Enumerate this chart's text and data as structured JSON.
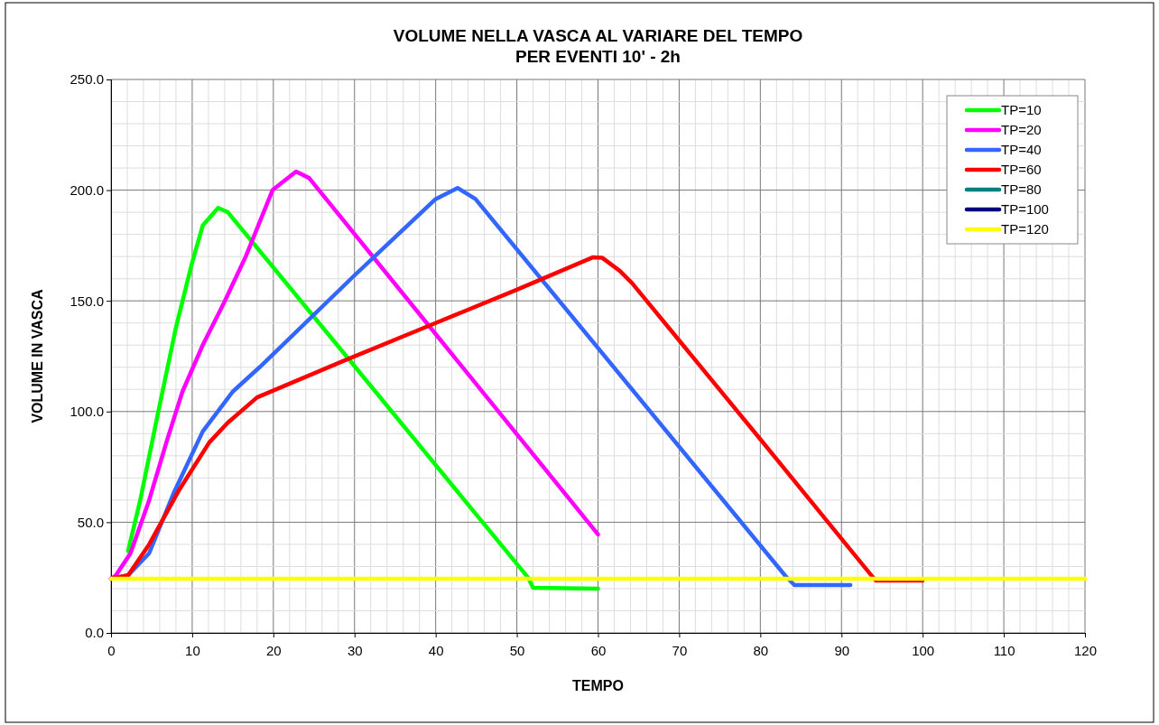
{
  "chart_data": {
    "type": "line",
    "title": "VOLUME NELLA VASCA AL VARIARE DEL TEMPO",
    "subtitle": "PER EVENTI 10' - 2h",
    "xlabel": "TEMPO",
    "ylabel": "VOLUME IN VASCA",
    "xlim": [
      0,
      120
    ],
    "xticks": [
      0,
      10,
      20,
      30,
      40,
      50,
      60,
      70,
      80,
      90,
      100,
      110,
      120
    ],
    "ylim": [
      0,
      250
    ],
    "yticks": [
      {
        "value": 0,
        "label": "0.0"
      },
      {
        "value": 50,
        "label": "50.0"
      },
      {
        "value": 100,
        "label": "100.0"
      },
      {
        "value": 150,
        "label": "150.0"
      },
      {
        "value": 200,
        "label": "200.0"
      },
      {
        "value": 250,
        "label": "250.0"
      }
    ],
    "grid": true,
    "legend": "top right",
    "marker": "none",
    "line_style": "solid",
    "series": [
      {
        "name": "TP=10",
        "color": "#00ff00",
        "x": [
          2.1,
          3.6,
          5.8,
          8,
          9.9,
          11.3,
          13.2,
          14.4,
          30,
          51.4,
          52,
          60
        ],
        "values": [
          37,
          60,
          99.5,
          138,
          166,
          184,
          192,
          190,
          120.5,
          24.9,
          20.4,
          20
        ]
      },
      {
        "name": "TP=20",
        "color": "#ff00ff",
        "x": [
          0,
          0.6,
          2.4,
          4.7,
          6.9,
          8.8,
          11.3,
          13.9,
          16.6,
          19.9,
          22.8,
          24.4,
          40,
          60
        ],
        "values": [
          24.5,
          26,
          36,
          60,
          87,
          109,
          130,
          149,
          170,
          200,
          208.4,
          205.5,
          135,
          44.5
        ]
      },
      {
        "name": "TP=40",
        "color": "#3366ff",
        "x": [
          0,
          2.1,
          4.7,
          7.7,
          11.3,
          15,
          18.3,
          30,
          40,
          42.7,
          44.9,
          83.1,
          84.2,
          91.1
        ],
        "values": [
          24.5,
          26,
          36,
          63,
          91,
          109,
          120,
          161.5,
          196,
          201,
          196,
          25.7,
          21.6,
          21.6
        ]
      },
      {
        "name": "TP=60",
        "color": "#ff0000",
        "x": [
          0,
          2.1,
          4.7,
          8.3,
          12.1,
          14.4,
          18,
          28.6,
          40,
          50,
          59.4,
          60.5,
          62.7,
          64.2,
          80,
          93.3,
          94.2,
          100
        ],
        "values": [
          24.5,
          26,
          40,
          64,
          86,
          95,
          106.4,
          122.8,
          140,
          155,
          169.7,
          169.5,
          163.5,
          158,
          87.5,
          27.7,
          23.7,
          23.7
        ]
      },
      {
        "name": "TP=80",
        "color": "#008080"
      },
      {
        "name": "TP=100",
        "color": "#000080"
      },
      {
        "name": "TP=120",
        "color": "#ffff00",
        "x": [
          0,
          120
        ],
        "values": [
          24.5,
          24.5
        ]
      }
    ]
  }
}
